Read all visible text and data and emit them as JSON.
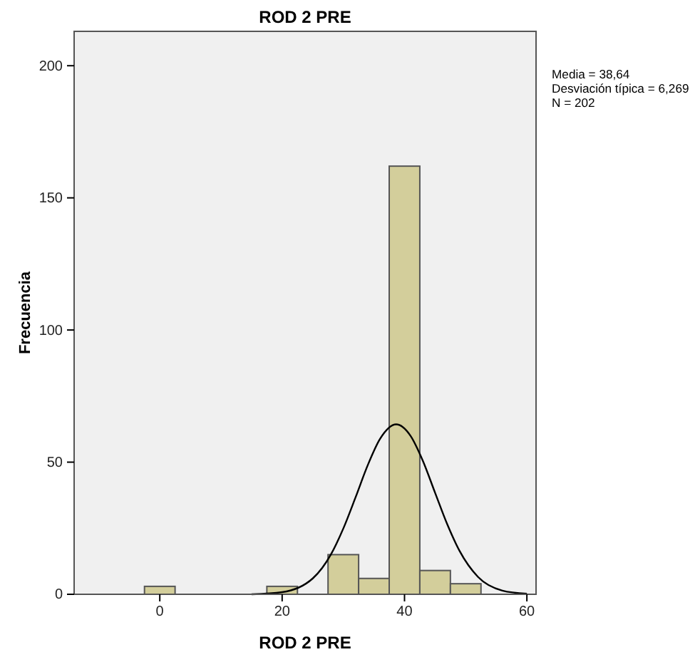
{
  "chart_data": {
    "type": "histogram",
    "title": "ROD 2 PRE",
    "xlabel": "ROD 2 PRE",
    "ylabel": "Frecuencia",
    "annotations": [
      "Media = 38,64",
      "Desviación típica = 6,269",
      "N = 202"
    ],
    "series": [
      {
        "color": "#d3ce9b",
        "bins": [
          -2.5,
          2.5,
          7.5,
          12.5,
          17.5,
          22.5,
          27.5,
          32.5,
          37.5,
          42.5,
          47.5,
          52.5
        ],
        "values": [
          3,
          0,
          0,
          0,
          3,
          0,
          15,
          6,
          162,
          9,
          4
        ]
      },
      {
        "type": "line",
        "color": "#000000",
        "x": [
          15,
          20,
          25,
          28,
          30,
          32,
          34,
          36,
          38.64,
          41,
          43,
          45,
          47,
          49,
          52,
          56,
          60
        ],
        "values": [
          0,
          0.8,
          6,
          15.2,
          24.9,
          36.7,
          48.9,
          58.8,
          64.3,
          59.9,
          50.5,
          38.4,
          26.4,
          16.4,
          6.6,
          1.4,
          0.2
        ]
      }
    ],
    "xlim": [
      -14,
      61.5
    ],
    "ylim": [
      0,
      213
    ],
    "xticks": [
      0,
      20,
      40,
      60
    ],
    "yticks": [
      0,
      50,
      100,
      150,
      200
    ],
    "grid": false
  }
}
